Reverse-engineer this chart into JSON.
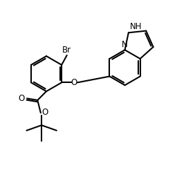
{
  "background_color": "#ffffff",
  "line_color": "#000000",
  "line_width": 1.5,
  "font_size": 8.5,
  "fig_width": 2.82,
  "fig_height": 2.72,
  "dpi": 100,
  "xlim": [
    -0.5,
    10.5
  ],
  "ylim": [
    -1.0,
    9.5
  ]
}
